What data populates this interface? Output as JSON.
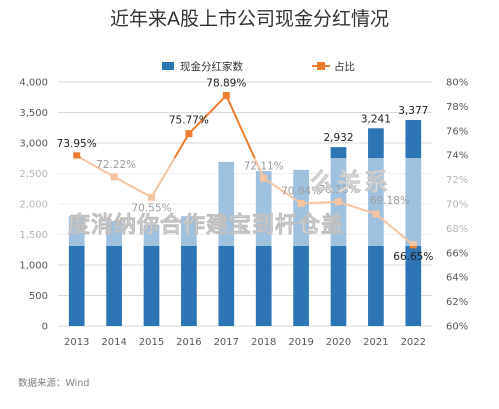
{
  "colors": {
    "bar": "#2E75B6",
    "line": "#ED7D31",
    "grid": "#d9d9d9",
    "axis_text": "#595959"
  },
  "chart_data": {
    "type": "bar",
    "title": "近年来A股上市公司现金分红情况",
    "categories": [
      "2013",
      "2014",
      "2015",
      "2016",
      "2017",
      "2018",
      "2019",
      "2020",
      "2021",
      "2022"
    ],
    "series": [
      {
        "name": "现金分红家数",
        "type": "bar",
        "axis": "left",
        "values": [
          1800,
          1720,
          1660,
          1800,
          2690,
          2540,
          2560,
          2932,
          3241,
          3377
        ],
        "labels": [
          "",
          "",
          "",
          "",
          "",
          "",
          "",
          "2,932",
          "3,241",
          "3,377"
        ]
      },
      {
        "name": "占比",
        "type": "line",
        "axis": "right",
        "values": [
          73.95,
          72.22,
          70.55,
          75.77,
          78.89,
          72.11,
          70.04,
          70.18,
          69.18,
          66.65
        ],
        "labels": [
          "73.95%",
          "72.22%",
          "70.55%",
          "75.77%",
          "78.89%",
          "72.11%",
          "70.04%",
          "70.18%",
          "69.18%",
          "66.65%"
        ]
      }
    ],
    "y_left": {
      "min": 0,
      "max": 4000,
      "step": 500,
      "ticks": [
        "0",
        "500",
        "1,000",
        "1,500",
        "2,000",
        "2,500",
        "3,000",
        "3,500",
        "4,000"
      ]
    },
    "y_right": {
      "min": 60,
      "max": 80,
      "step": 2,
      "ticks": [
        "60%",
        "62%",
        "64%",
        "66%",
        "68%",
        "70%",
        "72%",
        "74%",
        "76%",
        "78%",
        "80%"
      ]
    },
    "grid": true,
    "legend_position": "top-center",
    "source": "数据来源：Wind"
  },
  "overlay": {
    "line1": "么关系",
    "line2": "度消纳你合作建宝到杆仓盖"
  }
}
